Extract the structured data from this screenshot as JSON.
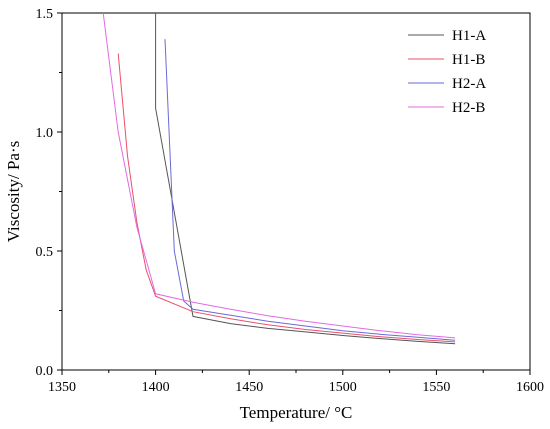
{
  "chart_data": {
    "type": "line",
    "title": "",
    "xlabel": "Temperature/ °C",
    "ylabel": "Viscosity/ Pa·s",
    "xlim": [
      1350,
      1600
    ],
    "ylim": [
      0,
      1.5
    ],
    "xticks": [
      1350,
      1400,
      1450,
      1500,
      1550,
      1600
    ],
    "yticks": [
      0.0,
      0.5,
      1.0,
      1.5
    ],
    "xtick_labels": [
      "1350",
      "1400",
      "1450",
      "1500",
      "1550",
      "1600"
    ],
    "ytick_labels": [
      "0.0",
      "0.5",
      "1.0",
      "1.5"
    ],
    "grid": false,
    "legend_position": "top-right",
    "series": [
      {
        "name": "H1-A",
        "color": "#555555",
        "x": [
          1400,
          1400,
          1420,
          1440,
          1460,
          1480,
          1500,
          1520,
          1540,
          1560
        ],
        "y": [
          1.5,
          1.1,
          0.225,
          0.195,
          0.175,
          0.16,
          0.145,
          0.132,
          0.12,
          0.11
        ]
      },
      {
        "name": "H1-B",
        "color": "#e8506a",
        "x": [
          1380,
          1385,
          1390,
          1395,
          1400,
          1420,
          1440,
          1460,
          1480,
          1500,
          1520,
          1540,
          1560
        ],
        "y": [
          1.33,
          0.9,
          0.62,
          0.42,
          0.31,
          0.245,
          0.215,
          0.19,
          0.17,
          0.155,
          0.14,
          0.128,
          0.118
        ]
      },
      {
        "name": "H2-A",
        "color": "#6a6ad8",
        "x": [
          1405,
          1410,
          1415,
          1420,
          1440,
          1460,
          1480,
          1500,
          1520,
          1540,
          1560
        ],
        "y": [
          1.39,
          0.5,
          0.29,
          0.255,
          0.23,
          0.205,
          0.185,
          0.165,
          0.15,
          0.138,
          0.125
        ]
      },
      {
        "name": "H2-B",
        "color": "#e36ae3",
        "x": [
          1372,
          1380,
          1390,
          1400,
          1420,
          1440,
          1460,
          1480,
          1500,
          1520,
          1540,
          1560
        ],
        "y": [
          1.5,
          1.0,
          0.6,
          0.32,
          0.285,
          0.255,
          0.228,
          0.205,
          0.185,
          0.165,
          0.148,
          0.135
        ]
      }
    ]
  }
}
